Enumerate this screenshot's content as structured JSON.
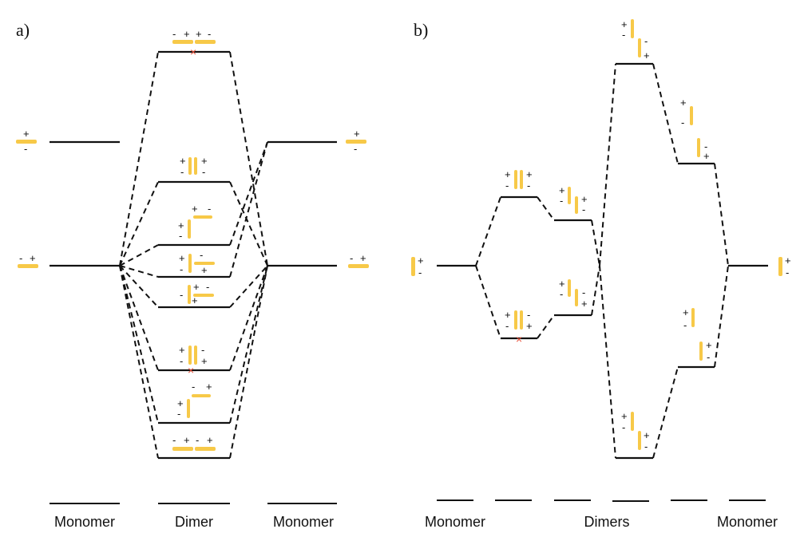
{
  "panels": [
    {
      "label": "a)",
      "categories": [
        "Monomer",
        "Dimer",
        "Monomer"
      ]
    },
    {
      "label": "b)",
      "categories": [
        "Monomer",
        "Dimers",
        "Monomer"
      ]
    }
  ],
  "colors": {
    "dipole": "#f7c948",
    "forbidden_mark": "#e8503a",
    "line": "#111111"
  },
  "signs": {
    "plus": "+",
    "minus": "-"
  },
  "marks": {
    "forbidden": "×"
  }
}
